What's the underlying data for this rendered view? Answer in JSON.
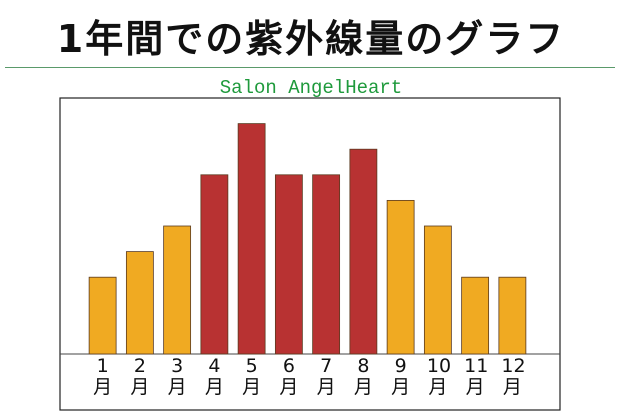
{
  "chart_data": {
    "type": "bar",
    "title": "1年間での紫外線量のグラフ",
    "subtitle": "Salon AngelHeart",
    "categories": [
      "1月",
      "2月",
      "3月",
      "4月",
      "5月",
      "6月",
      "7月",
      "8月",
      "9月",
      "10月",
      "11月",
      "12月"
    ],
    "values": [
      3,
      4,
      5,
      7,
      9,
      7,
      7,
      8,
      6,
      5,
      3,
      3
    ],
    "colors": [
      "#f0aa22",
      "#f0aa22",
      "#f0aa22",
      "#b83232",
      "#b83232",
      "#b83232",
      "#b83232",
      "#b83232",
      "#f0aa22",
      "#f0aa22",
      "#f0aa22",
      "#f0aa22"
    ],
    "ylim": [
      0,
      10
    ]
  }
}
